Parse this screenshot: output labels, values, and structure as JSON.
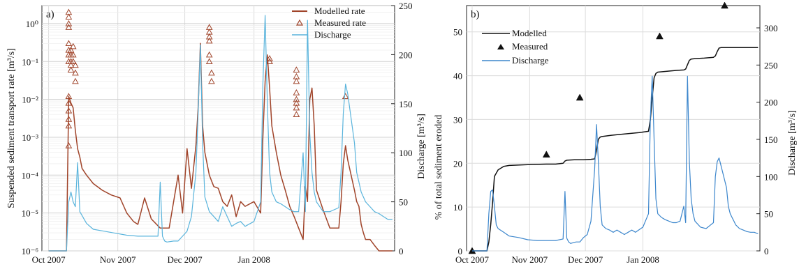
{
  "chart_data": [
    {
      "panel_label": "a)",
      "type": "line",
      "ylabel_left": "Suspended sediment transport rate [m³/s]",
      "ylabel_right": "Discharge [m³/s]",
      "x_ticks": [
        "Oct 2007",
        "Nov 2007",
        "Dec 2007",
        "Jan 2008"
      ],
      "y_left_scale": "log",
      "y_left_lim": [
        1e-06,
        3
      ],
      "y_left_ticks": [
        "10⁻⁶",
        "10⁻⁵",
        "10⁻⁴",
        "10⁻³",
        "10⁻²",
        "10⁻¹",
        "10⁰"
      ],
      "y_right_lim": [
        0,
        250
      ],
      "y_right_ticks": [
        "0",
        "50",
        "100",
        "150",
        "200",
        "250"
      ],
      "x_range_days": [
        -3,
        155
      ],
      "grid": true,
      "legend_position": "top-right",
      "series": [
        {
          "name": "Modelled rate",
          "axis": "left",
          "color": "#a0442a",
          "style": "line",
          "x": [
            0,
            8,
            9,
            10,
            11,
            12,
            13,
            14,
            15,
            17,
            20,
            24,
            28,
            32,
            35,
            38,
            40,
            43,
            46,
            50,
            54,
            58,
            60,
            62,
            64,
            66,
            67,
            68,
            69,
            70,
            72,
            74,
            76,
            78,
            80,
            82,
            84,
            86,
            88,
            92,
            95,
            96,
            97,
            98,
            99,
            100,
            102,
            104,
            106,
            108,
            110,
            112,
            114,
            115,
            116,
            117,
            118,
            119,
            120,
            123,
            126,
            130,
            131,
            132,
            133,
            134,
            137,
            138,
            139,
            140,
            141,
            142,
            144,
            146,
            148,
            150,
            152,
            154
          ],
          "y": [
            1e-06,
            1e-06,
            0.012,
            0.008,
            0.006,
            0.0015,
            0.0005,
            0.0003,
            0.00015,
            0.0001,
            6e-05,
            4e-05,
            3e-05,
            2.5e-05,
            1e-05,
            6e-06,
            5e-06,
            2.5e-05,
            7e-06,
            4e-06,
            4e-06,
            0.0001,
            1e-05,
            0.0005,
            4.5e-05,
            0.0006,
            0.006,
            0.3,
            0.002,
            0.0004,
            0.0001,
            5e-05,
            4.5e-05,
            2e-05,
            1.5e-05,
            3e-05,
            8e-06,
            2e-05,
            1.5e-05,
            2e-05,
            1e-05,
            0.001,
            0.03,
            0.15,
            0.02,
            0.002,
            0.0004,
            0.0001,
            4e-05,
            1.5e-05,
            8e-06,
            4e-06,
            2e-06,
            5e-05,
            2e-05,
            0.01,
            0.02,
            0.002,
            4e-05,
            1.2e-05,
            4e-06,
            4e-06,
            2e-05,
            0.0002,
            0.0006,
            0.00025,
            4e-05,
            2e-05,
            1.5e-05,
            5e-06,
            3e-06,
            2e-06,
            2e-06,
            1.4e-06,
            1e-06,
            1e-06,
            1e-06,
            1e-06
          ]
        },
        {
          "name": "Measured rate",
          "axis": "left",
          "color": "#a0442a",
          "style": "marker",
          "x": [
            9,
            9,
            9,
            9,
            9,
            9,
            9,
            9,
            9,
            9,
            9,
            9,
            9,
            9,
            10,
            10,
            10,
            10,
            10,
            11,
            11,
            11,
            12,
            12,
            12,
            72,
            72,
            72,
            72,
            72,
            72,
            73,
            73,
            99,
            99,
            111,
            111,
            111,
            111,
            111,
            111,
            111,
            111,
            133
          ],
          "y": [
            2,
            1.5,
            1,
            0.8,
            0.3,
            0.2,
            0.15,
            0.1,
            0.012,
            0.008,
            0.005,
            0.003,
            0.002,
            0.0006,
            0.2,
            0.15,
            0.1,
            0.08,
            0.06,
            0.25,
            0.15,
            0.1,
            0.08,
            0.05,
            0.03,
            0.8,
            0.6,
            0.45,
            0.35,
            0.15,
            0.1,
            0.05,
            0.03,
            0.12,
            0.1,
            0.06,
            0.04,
            0.03,
            0.015,
            0.01,
            0.008,
            0.006,
            0.004,
            0.012
          ]
        },
        {
          "name": "Discharge",
          "axis": "right",
          "color": "#5ab4dc",
          "style": "line",
          "x": [
            0,
            7,
            8,
            9,
            10,
            11,
            12,
            13,
            14,
            17,
            20,
            25,
            30,
            35,
            40,
            45,
            49,
            50,
            51,
            52,
            53,
            56,
            58,
            60,
            62,
            64,
            66,
            67,
            68,
            69,
            70,
            72,
            74,
            76,
            78,
            80,
            82,
            84,
            86,
            88,
            92,
            95,
            96,
            97,
            98,
            99,
            100,
            102,
            104,
            106,
            108,
            110,
            112,
            114,
            115,
            116,
            117,
            118,
            119,
            120,
            123,
            126,
            130,
            131,
            132,
            133,
            134,
            137,
            138,
            139,
            140,
            141,
            142,
            144,
            146,
            148,
            150,
            152,
            154
          ],
          "y": [
            0,
            0,
            0,
            50,
            60,
            50,
            45,
            90,
            40,
            28,
            22,
            20,
            18,
            16,
            15,
            15,
            15,
            70,
            15,
            10,
            9,
            10,
            10,
            15,
            20,
            35,
            80,
            140,
            210,
            110,
            55,
            40,
            35,
            30,
            45,
            35,
            25,
            28,
            30,
            25,
            30,
            50,
            170,
            240,
            150,
            80,
            60,
            50,
            48,
            45,
            42,
            40,
            40,
            100,
            40,
            235,
            120,
            80,
            60,
            50,
            40,
            40,
            44,
            80,
            140,
            170,
            160,
            110,
            80,
            70,
            60,
            55,
            50,
            45,
            40,
            38,
            35,
            32,
            32
          ]
        }
      ]
    },
    {
      "panel_label": "b)",
      "type": "line",
      "ylabel_left": "% of  total sediment eroded",
      "ylabel_right": "Discharge [m³/s]",
      "x_ticks": [
        "Oct 2007",
        "Nov 2007",
        "Dec 2007",
        "Jan 2008"
      ],
      "y_left_lim": [
        0,
        56
      ],
      "y_left_ticks": [
        "0",
        "10",
        "20",
        "30",
        "40",
        "50"
      ],
      "y_right_lim": [
        0,
        330
      ],
      "y_right_ticks": [
        "0",
        "50",
        "100",
        "150",
        "200",
        "250",
        "300"
      ],
      "x_range_days": [
        -3,
        155
      ],
      "grid": true,
      "legend_position": "top-left",
      "series": [
        {
          "name": "Modelled",
          "axis": "left",
          "color": "#111111",
          "style": "line",
          "x": [
            0,
            8,
            9,
            10,
            11,
            12,
            14,
            17,
            20,
            30,
            40,
            45,
            49,
            50,
            51,
            55,
            60,
            64,
            66,
            67,
            68,
            69,
            70,
            75,
            80,
            90,
            95,
            96,
            97,
            98,
            99,
            100,
            105,
            110,
            114,
            115,
            116,
            117,
            118,
            120,
            125,
            130,
            131,
            132,
            133,
            134,
            140,
            150,
            154
          ],
          "y": [
            0,
            0,
            2,
            6,
            11,
            17,
            18.5,
            19.3,
            19.5,
            19.7,
            19.8,
            19.8,
            20,
            20.5,
            20.7,
            20.8,
            20.8,
            20.9,
            21,
            23,
            25.5,
            26,
            26.1,
            26.4,
            26.6,
            27,
            27.3,
            30,
            35,
            39.5,
            40.5,
            40.8,
            41,
            41.2,
            41.3,
            41.5,
            42.5,
            43.5,
            43.8,
            43.9,
            44,
            44.2,
            44.5,
            45.5,
            46.3,
            46.4,
            46.4,
            46.4,
            46.4
          ]
        },
        {
          "name": "Measured",
          "axis": "left",
          "color": "#111111",
          "style": "marker",
          "x": [
            0,
            40,
            58,
            101,
            136
          ],
          "y": [
            0,
            22,
            35,
            49,
            56
          ]
        },
        {
          "name": "Discharge",
          "axis": "right",
          "color": "#3c86cc",
          "style": "line",
          "x": [
            0,
            7,
            8,
            9,
            10,
            11,
            12,
            13,
            14,
            17,
            20,
            25,
            30,
            35,
            40,
            45,
            49,
            50,
            51,
            52,
            53,
            56,
            58,
            60,
            62,
            64,
            66,
            67,
            68,
            69,
            70,
            72,
            74,
            76,
            78,
            80,
            82,
            84,
            86,
            88,
            92,
            95,
            96,
            97,
            98,
            99,
            100,
            102,
            104,
            106,
            108,
            110,
            112,
            114,
            115,
            116,
            117,
            118,
            119,
            120,
            123,
            126,
            130,
            131,
            132,
            133,
            134,
            137,
            138,
            139,
            140,
            141,
            142,
            144,
            146,
            148,
            150,
            152,
            154
          ],
          "y": [
            0,
            0,
            0,
            50,
            80,
            82,
            60,
            35,
            30,
            25,
            20,
            18,
            15,
            14,
            14,
            14,
            16,
            80,
            17,
            12,
            10,
            12,
            12,
            18,
            22,
            40,
            110,
            170,
            120,
            60,
            35,
            30,
            28,
            25,
            28,
            25,
            22,
            25,
            28,
            25,
            32,
            50,
            180,
            235,
            150,
            70,
            50,
            45,
            42,
            40,
            38,
            38,
            40,
            60,
            38,
            235,
            120,
            70,
            50,
            40,
            32,
            30,
            38,
            100,
            120,
            125,
            115,
            85,
            60,
            50,
            45,
            40,
            35,
            30,
            28,
            26,
            25,
            25,
            23
          ]
        }
      ]
    }
  ]
}
